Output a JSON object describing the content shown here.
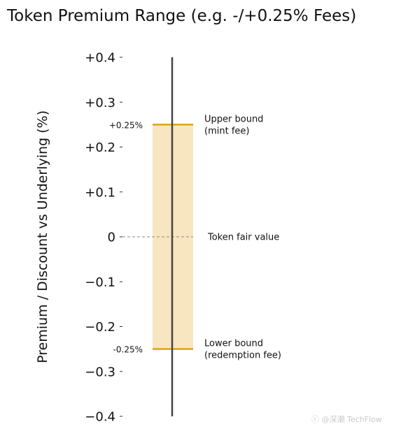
{
  "chart_data": {
    "type": "range",
    "title": "Token Premium Range (e.g. -/+0.25% Fees)",
    "ylabel": "Premium / Discount vs Underlying (%)",
    "xlabel": "",
    "ylim": [
      -0.4,
      0.4
    ],
    "yticks": [
      {
        "value": 0.4,
        "label": "+0.4"
      },
      {
        "value": 0.3,
        "label": "+0.3"
      },
      {
        "value": 0.2,
        "label": "+0.2"
      },
      {
        "value": 0.1,
        "label": "+0.1"
      },
      {
        "value": 0.0,
        "label": "0"
      },
      {
        "value": -0.1,
        "label": "−0.1"
      },
      {
        "value": -0.2,
        "label": "−0.2"
      },
      {
        "value": -0.3,
        "label": "−0.3"
      },
      {
        "value": -0.4,
        "label": "−0.4"
      }
    ],
    "band": {
      "lower": -0.25,
      "upper": 0.25,
      "color": "#f8e6c0"
    },
    "bounds": [
      {
        "key": "upper",
        "value": 0.25,
        "value_label": "+0.25%",
        "label_line1": "Upper bound",
        "label_line2": "(mint fee)",
        "color": "#e2a112"
      },
      {
        "key": "lower",
        "value": -0.25,
        "value_label": "-0.25%",
        "label_line1": "Lower bound",
        "label_line2": "(redemption fee)",
        "color": "#e2a112"
      }
    ],
    "reference": {
      "value": 0.0,
      "label": "Token fair value",
      "color": "#888888",
      "style": "dashed"
    },
    "axis_line_color": "#444444",
    "grid": false,
    "legend": "none"
  },
  "watermark": "ⓒ @深潮 TechFlow"
}
